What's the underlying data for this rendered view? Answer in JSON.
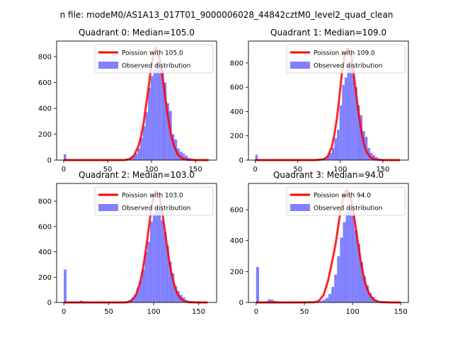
{
  "figure": {
    "suptitle": "n file: modeM0/AS1A13_017T01_9000006028_44842cztM0_level2_quad_clean"
  },
  "colors": {
    "poisson": "#ff0000",
    "hist": "#8080ff",
    "axes": "#000000",
    "background": "#ffffff"
  },
  "chart_data": [
    {
      "type": "bar",
      "title": "Quadrant 0: Median=105.0",
      "median": 105.0,
      "legend": {
        "position": "top-right",
        "entries": [
          "Poission with 105.0",
          "Observed distribution"
        ]
      },
      "xlim": [
        -8,
        174
      ],
      "ylim": [
        0,
        920
      ],
      "xticks": [
        0,
        50,
        100,
        150
      ],
      "yticks": [
        0,
        200,
        400,
        600,
        800
      ],
      "bin_width": 3,
      "bins": [
        [
          0,
          45
        ],
        [
          3,
          5
        ],
        [
          6,
          4
        ],
        [
          9,
          4
        ],
        [
          12,
          3
        ],
        [
          15,
          3
        ],
        [
          18,
          3
        ],
        [
          21,
          3
        ],
        [
          24,
          3
        ],
        [
          27,
          3
        ],
        [
          30,
          3
        ],
        [
          33,
          3
        ],
        [
          36,
          3
        ],
        [
          39,
          3
        ],
        [
          42,
          3
        ],
        [
          45,
          3
        ],
        [
          48,
          3
        ],
        [
          51,
          3
        ],
        [
          54,
          3
        ],
        [
          57,
          3
        ],
        [
          60,
          3
        ],
        [
          63,
          4
        ],
        [
          66,
          5
        ],
        [
          69,
          8
        ],
        [
          72,
          14
        ],
        [
          75,
          22
        ],
        [
          78,
          35
        ],
        [
          81,
          50
        ],
        [
          84,
          90
        ],
        [
          87,
          170
        ],
        [
          90,
          260
        ],
        [
          93,
          370
        ],
        [
          96,
          560
        ],
        [
          99,
          650
        ],
        [
          102,
          700
        ],
        [
          105,
          760
        ],
        [
          108,
          740
        ],
        [
          111,
          700
        ],
        [
          114,
          600
        ],
        [
          117,
          440
        ],
        [
          120,
          380
        ],
        [
          123,
          200
        ],
        [
          126,
          160
        ],
        [
          129,
          90
        ],
        [
          132,
          65
        ],
        [
          135,
          50
        ],
        [
          138,
          35
        ],
        [
          141,
          18
        ],
        [
          144,
          10
        ],
        [
          147,
          6
        ],
        [
          150,
          4
        ],
        [
          153,
          3
        ],
        [
          156,
          3
        ],
        [
          159,
          3
        ],
        [
          162,
          3
        ]
      ],
      "curve_x": [
        0,
        20,
        40,
        60,
        70,
        75,
        80,
        85,
        88,
        91,
        94,
        97,
        100,
        103,
        105,
        107,
        110,
        113,
        116,
        119,
        122,
        125,
        130,
        135,
        140,
        150,
        160,
        165
      ],
      "curve_y": [
        0,
        0,
        0,
        0,
        1,
        8,
        34,
        106,
        183,
        287,
        435,
        581,
        745,
        838,
        870,
        838,
        760,
        617,
        464,
        320,
        204,
        120,
        40,
        11,
        3,
        0,
        0,
        0
      ]
    },
    {
      "type": "bar",
      "title": "Quadrant 1: Median=109.0",
      "median": 109.0,
      "legend": {
        "position": "top-right",
        "entries": [
          "Poission with 109.0",
          "Observed distribution"
        ]
      },
      "xlim": [
        -8,
        180
      ],
      "ylim": [
        0,
        980
      ],
      "xticks": [
        0,
        50,
        100,
        150
      ],
      "yticks": [
        0,
        200,
        400,
        600,
        800
      ],
      "bin_width": 3,
      "bins": [
        [
          0,
          45
        ],
        [
          3,
          5
        ],
        [
          6,
          4
        ],
        [
          9,
          4
        ],
        [
          12,
          3
        ],
        [
          15,
          3
        ],
        [
          18,
          3
        ],
        [
          21,
          3
        ],
        [
          24,
          3
        ],
        [
          27,
          3
        ],
        [
          30,
          3
        ],
        [
          33,
          3
        ],
        [
          36,
          3
        ],
        [
          39,
          3
        ],
        [
          42,
          3
        ],
        [
          45,
          3
        ],
        [
          48,
          3
        ],
        [
          51,
          3
        ],
        [
          54,
          3
        ],
        [
          57,
          3
        ],
        [
          60,
          3
        ],
        [
          63,
          3
        ],
        [
          66,
          4
        ],
        [
          69,
          5
        ],
        [
          72,
          6
        ],
        [
          75,
          10
        ],
        [
          78,
          14
        ],
        [
          81,
          20
        ],
        [
          84,
          35
        ],
        [
          87,
          60
        ],
        [
          90,
          100
        ],
        [
          93,
          180
        ],
        [
          96,
          250
        ],
        [
          99,
          450
        ],
        [
          102,
          620
        ],
        [
          105,
          680
        ],
        [
          108,
          800
        ],
        [
          111,
          760
        ],
        [
          114,
          700
        ],
        [
          117,
          600
        ],
        [
          120,
          450
        ],
        [
          123,
          370
        ],
        [
          126,
          240
        ],
        [
          129,
          190
        ],
        [
          132,
          100
        ],
        [
          135,
          60
        ],
        [
          138,
          40
        ],
        [
          141,
          25
        ],
        [
          144,
          12
        ],
        [
          147,
          8
        ],
        [
          150,
          5
        ],
        [
          153,
          4
        ],
        [
          156,
          3
        ],
        [
          159,
          3
        ],
        [
          162,
          3
        ],
        [
          165,
          3
        ],
        [
          168,
          3
        ]
      ],
      "curve_x": [
        0,
        20,
        40,
        60,
        70,
        80,
        85,
        90,
        93,
        96,
        99,
        102,
        105,
        109,
        113,
        116,
        119,
        122,
        125,
        128,
        131,
        135,
        140,
        150,
        160,
        170
      ],
      "curve_y": [
        0,
        0,
        0,
        0,
        0,
        6,
        28,
        110,
        211,
        345,
        528,
        728,
        860,
        920,
        860,
        690,
        520,
        360,
        225,
        125,
        65,
        25,
        5,
        0,
        0,
        0
      ]
    },
    {
      "type": "bar",
      "title": "Quadrant 2: Median=103.0",
      "median": 103.0,
      "legend": {
        "position": "top-right",
        "entries": [
          "Poission with 103.0",
          "Observed distribution"
        ]
      },
      "xlim": [
        -8,
        170
      ],
      "ylim": [
        0,
        940
      ],
      "xticks": [
        0,
        50,
        100,
        150
      ],
      "yticks": [
        0,
        200,
        400,
        600,
        800
      ],
      "bin_width": 3,
      "bins": [
        [
          0,
          260
        ],
        [
          3,
          5
        ],
        [
          6,
          4
        ],
        [
          9,
          4
        ],
        [
          12,
          3
        ],
        [
          15,
          4
        ],
        [
          18,
          14
        ],
        [
          21,
          8
        ],
        [
          24,
          5
        ],
        [
          27,
          4
        ],
        [
          30,
          3
        ],
        [
          33,
          3
        ],
        [
          36,
          3
        ],
        [
          39,
          3
        ],
        [
          42,
          3
        ],
        [
          45,
          3
        ],
        [
          48,
          3
        ],
        [
          51,
          3
        ],
        [
          54,
          3
        ],
        [
          57,
          3
        ],
        [
          60,
          3
        ],
        [
          63,
          4
        ],
        [
          66,
          6
        ],
        [
          69,
          10
        ],
        [
          72,
          20
        ],
        [
          75,
          35
        ],
        [
          78,
          60
        ],
        [
          81,
          110
        ],
        [
          84,
          170
        ],
        [
          87,
          260
        ],
        [
          90,
          400
        ],
        [
          93,
          480
        ],
        [
          96,
          640
        ],
        [
          99,
          700
        ],
        [
          102,
          750
        ],
        [
          105,
          740
        ],
        [
          108,
          650
        ],
        [
          111,
          560
        ],
        [
          114,
          450
        ],
        [
          117,
          320
        ],
        [
          120,
          230
        ],
        [
          123,
          130
        ],
        [
          126,
          90
        ],
        [
          129,
          60
        ],
        [
          132,
          40
        ],
        [
          135,
          20
        ],
        [
          138,
          12
        ],
        [
          141,
          8
        ],
        [
          144,
          5
        ],
        [
          147,
          3
        ],
        [
          150,
          3
        ],
        [
          153,
          3
        ],
        [
          156,
          3
        ]
      ],
      "curve_x": [
        0,
        20,
        40,
        60,
        70,
        75,
        80,
        85,
        88,
        91,
        94,
        97,
        100,
        103,
        106,
        109,
        112,
        115,
        118,
        121,
        124,
        127,
        130,
        135,
        140,
        150,
        160
      ],
      "curve_y": [
        0,
        0,
        0,
        0,
        1,
        12,
        55,
        160,
        264,
        400,
        560,
        720,
        850,
        880,
        850,
        735,
        590,
        440,
        300,
        190,
        112,
        60,
        30,
        8,
        2,
        0,
        0
      ]
    },
    {
      "type": "bar",
      "title": "Quadrant 3: Median=94.0",
      "median": 94.0,
      "legend": {
        "position": "top-right",
        "entries": [
          "Poission with 94.0",
          "Observed distribution"
        ]
      },
      "xlim": [
        -8,
        158
      ],
      "ylim": [
        0,
        770
      ],
      "xticks": [
        0,
        50,
        100,
        150
      ],
      "yticks": [
        0,
        200,
        400,
        600
      ],
      "bin_width": 3,
      "bins": [
        [
          0,
          230
        ],
        [
          3,
          5
        ],
        [
          6,
          4
        ],
        [
          9,
          4
        ],
        [
          12,
          20
        ],
        [
          15,
          18
        ],
        [
          18,
          10
        ],
        [
          21,
          5
        ],
        [
          24,
          4
        ],
        [
          27,
          3
        ],
        [
          30,
          3
        ],
        [
          33,
          3
        ],
        [
          36,
          3
        ],
        [
          39,
          3
        ],
        [
          42,
          3
        ],
        [
          45,
          3
        ],
        [
          48,
          3
        ],
        [
          51,
          3
        ],
        [
          54,
          3
        ],
        [
          57,
          3
        ],
        [
          60,
          4
        ],
        [
          63,
          6
        ],
        [
          66,
          10
        ],
        [
          69,
          18
        ],
        [
          72,
          30
        ],
        [
          75,
          55
        ],
        [
          78,
          100
        ],
        [
          81,
          180
        ],
        [
          84,
          300
        ],
        [
          87,
          420
        ],
        [
          90,
          520
        ],
        [
          93,
          590
        ],
        [
          96,
          610
        ],
        [
          99,
          560
        ],
        [
          102,
          470
        ],
        [
          105,
          380
        ],
        [
          108,
          260
        ],
        [
          111,
          170
        ],
        [
          114,
          110
        ],
        [
          117,
          60
        ],
        [
          120,
          35
        ],
        [
          123,
          18
        ],
        [
          126,
          10
        ],
        [
          129,
          6
        ],
        [
          132,
          4
        ],
        [
          135,
          3
        ],
        [
          138,
          3
        ],
        [
          141,
          3
        ]
      ],
      "curve_x": [
        0,
        20,
        40,
        60,
        65,
        70,
        75,
        80,
        83,
        86,
        89,
        92,
        94,
        97,
        100,
        103,
        106,
        109,
        112,
        115,
        118,
        122,
        126,
        130,
        140,
        150
      ],
      "curve_y": [
        0,
        0,
        0,
        1,
        10,
        48,
        150,
        300,
        400,
        530,
        640,
        715,
        730,
        705,
        620,
        500,
        370,
        250,
        155,
        90,
        48,
        18,
        6,
        2,
        0,
        0
      ]
    }
  ]
}
